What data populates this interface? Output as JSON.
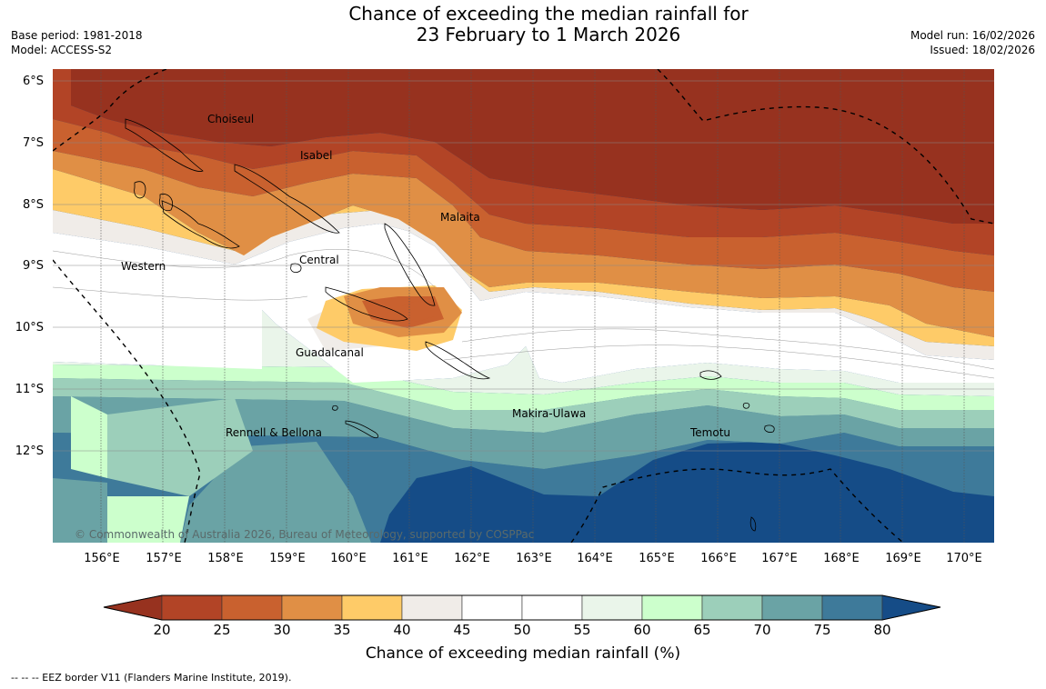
{
  "title_line1": "Chance of exceeding the median rainfall for",
  "title_line2": "23 February to 1 March 2026",
  "meta_left": {
    "base_period": "Base period: 1981-2018",
    "model": "Model: ACCESS-S2"
  },
  "meta_right": {
    "model_run": "Model run: 16/02/2026",
    "issued": "Issued: 18/02/2026"
  },
  "lat_labels": [
    "6°S",
    "7°S",
    "8°S",
    "9°S",
    "10°S",
    "11°S",
    "12°S"
  ],
  "lon_labels": [
    "156°E",
    "157°E",
    "158°E",
    "159°E",
    "160°E",
    "161°E",
    "162°E",
    "163°E",
    "164°E",
    "165°E",
    "166°E",
    "167°E",
    "168°E",
    "169°E",
    "170°E"
  ],
  "regions": {
    "choiseul": "Choiseul",
    "isabel": "Isabel",
    "malaita": "Malaita",
    "western": "Western",
    "central": "Central",
    "guadalcanal": "Guadalcanal",
    "makira": "Makira-Ulawa",
    "rennell": "Rennell & Bellona",
    "temotu": "Temotu"
  },
  "copyright": "© Commonwealth of Australia 2026, Bureau of Meteorology, supported by COSPPac",
  "colorbar": {
    "label": "Chance of exceeding median rainfall (%)",
    "ticks": [
      "20",
      "25",
      "30",
      "35",
      "40",
      "45",
      "50",
      "55",
      "60",
      "65",
      "70",
      "75",
      "80"
    ],
    "colors": [
      "#97321f",
      "#b24426",
      "#c9612f",
      "#e08f45",
      "#fecb68",
      "#f0ece8",
      "#ffffff",
      "#ffffff",
      "#eaf5ea",
      "#ccffcc",
      "#9ccfba",
      "#6aa3a5",
      "#3e7a9a",
      "#154c87"
    ]
  },
  "eez_note": "--  --  -- EEZ border V11 (Flanders Marine Institute, 2019)."
}
